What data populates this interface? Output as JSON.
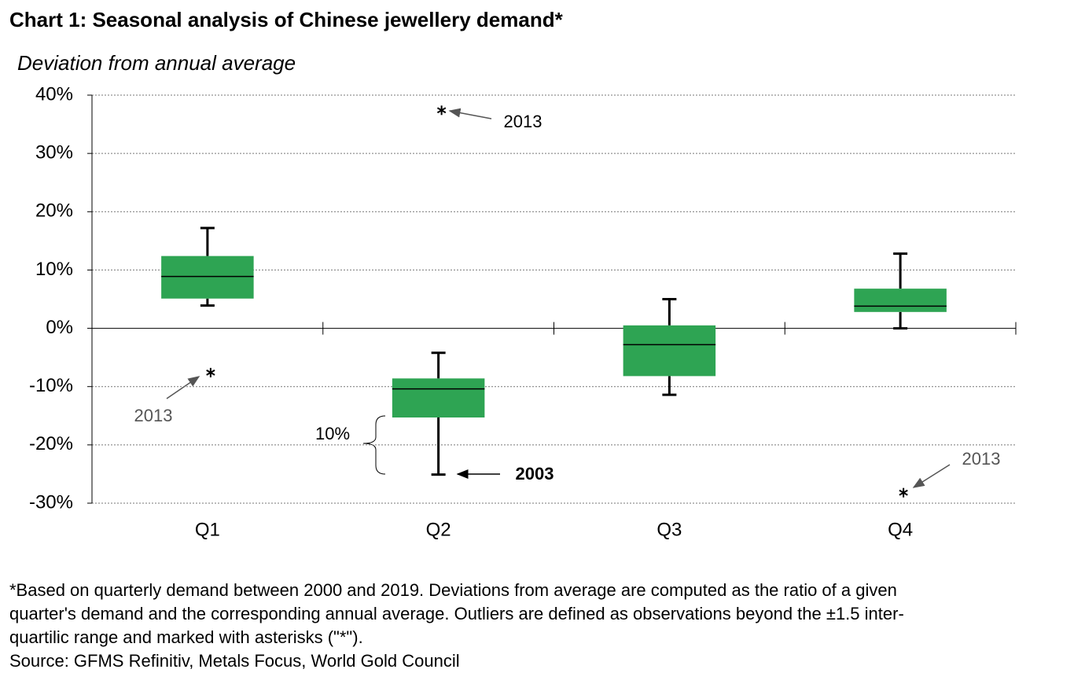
{
  "chart_data": {
    "type": "box",
    "title": "Chart 1: Seasonal analysis of Chinese jewellery demand*",
    "subtitle": "Deviation from annual average",
    "categories": [
      "Q1",
      "Q2",
      "Q3",
      "Q4"
    ],
    "color": "#2ea453",
    "boxes": [
      {
        "whislo": 3.9,
        "q1": 5.1,
        "median": 8.9,
        "q3": 12.4,
        "whishi": 17.2,
        "outliers": [
          -7.6
        ]
      },
      {
        "whislo": -25.1,
        "q1": -15.3,
        "median": -10.4,
        "q3": -8.6,
        "whishi": -4.2,
        "outliers": [
          37.4
        ]
      },
      {
        "whislo": -11.4,
        "q1": -8.2,
        "median": -2.8,
        "q3": 0.5,
        "whishi": 5.0,
        "outliers": []
      },
      {
        "whislo": 0,
        "q1": 2.8,
        "median": 3.8,
        "q3": 6.8,
        "whishi": 12.8,
        "outliers": [
          -28.2
        ]
      }
    ],
    "ylim": [
      -30,
      40
    ],
    "yticks": [
      {
        "value": -30,
        "label": "-30%"
      },
      {
        "value": -20,
        "label": "-20%"
      },
      {
        "value": -10,
        "label": "-10%"
      },
      {
        "value": 0,
        "label": "0%"
      },
      {
        "value": 10,
        "label": "10%"
      },
      {
        "value": 20,
        "label": "20%"
      },
      {
        "value": 30,
        "label": "30%"
      },
      {
        "value": 40,
        "label": "40%"
      }
    ],
    "grid": true,
    "annotations": [
      "2013",
      "2013",
      "10%",
      "2003",
      "2013"
    ],
    "footnote": [
      "*Based on quarterly demand between 2000 and 2019. Deviations from average are computed as the ratio of a given",
      "quarter's demand and the corresponding annual average. Outliers are defined as observations beyond the ±1.5 inter-",
      "quartilic range and marked with asterisks (\"*\")."
    ],
    "source": "Source: GFMS Refinitiv, Metals Focus, World Gold Council"
  }
}
